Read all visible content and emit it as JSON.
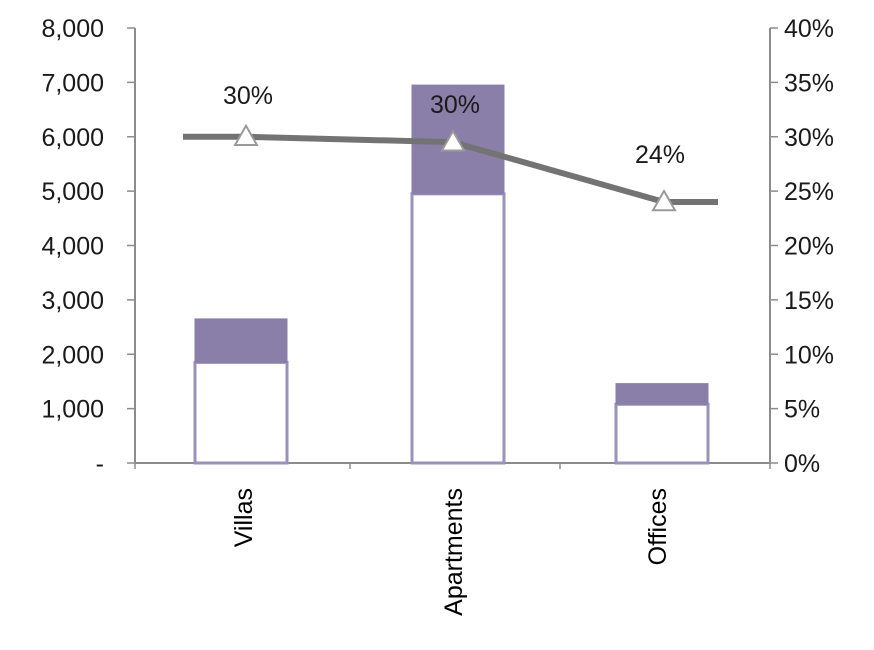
{
  "chart_data": {
    "type": "bar",
    "categories": [
      "Villas",
      "Apartments",
      "Offices"
    ],
    "series": [
      {
        "values": [
          1850,
          4950,
          1080
        ],
        "kind": "bar-base"
      },
      {
        "values": [
          800,
          2000,
          380
        ],
        "kind": "bar-top"
      },
      {
        "values": [
          30,
          29.5,
          24
        ],
        "kind": "line",
        "axis": "right"
      }
    ],
    "data_labels": [
      "30%",
      "30%",
      "24%"
    ],
    "yleft": {
      "lim": [
        0,
        8000
      ],
      "ticks": [
        0,
        1000,
        2000,
        3000,
        4000,
        5000,
        6000,
        7000,
        8000
      ],
      "tick_labels": [
        "-",
        "1,000",
        "2,000",
        "3,000",
        "4,000",
        "5,000",
        "6,000",
        "7,000",
        "8,000"
      ]
    },
    "yright": {
      "lim": [
        0,
        40
      ],
      "ticks": [
        0,
        5,
        10,
        15,
        20,
        25,
        30,
        35,
        40
      ],
      "tick_labels": [
        "0%",
        "5%",
        "10%",
        "15%",
        "20%",
        "25%",
        "30%",
        "35%",
        "40%"
      ]
    },
    "title": "",
    "xlabel": "",
    "ylabel": "",
    "grid": false,
    "legend": "none",
    "colors": {
      "bar_base_fill": "#ffffff",
      "bar_base_stroke": "#9a92b8",
      "bar_top_fill": "#8a7fa8",
      "line": "#737373",
      "marker_fill": "#ffffff",
      "marker_stroke": "#9a9a9a",
      "axis": "#8c8c8c"
    }
  }
}
